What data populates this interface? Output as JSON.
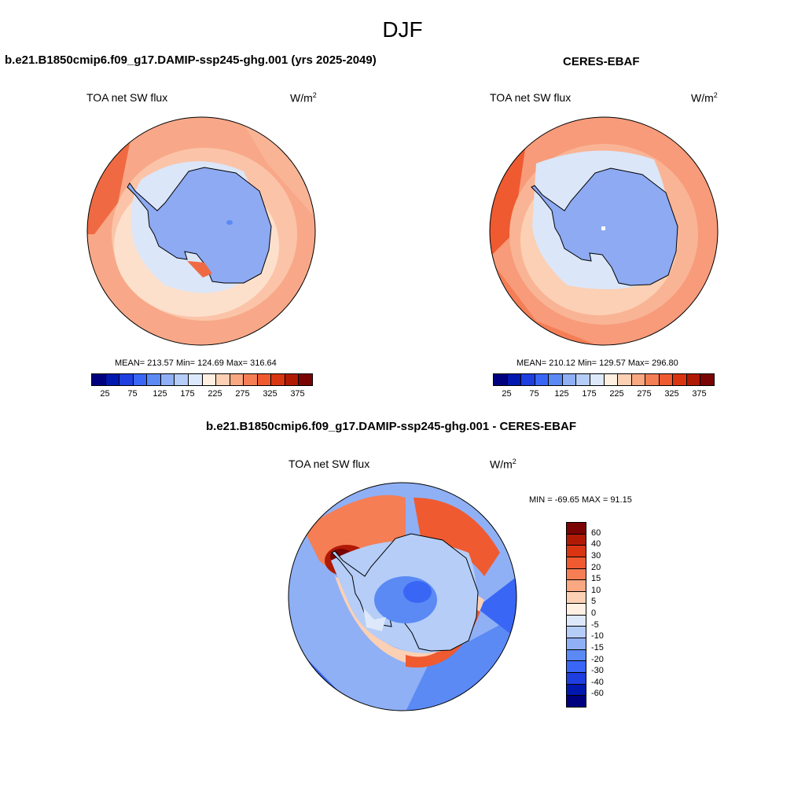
{
  "figure": {
    "title": "DJF"
  },
  "panel_model": {
    "title": "b.e21.B1850cmip6.f09_g17.DAMIP-ssp245-ghg.001 (yrs 2025-2049)",
    "variable": "TOA net SW flux",
    "units": "W/m",
    "units_sup": "2",
    "stats": "MEAN= 213.57  Min= 124.69  Max= 316.64"
  },
  "panel_obs": {
    "title": "CERES-EBAF",
    "variable": "TOA net SW flux",
    "units": "W/m",
    "units_sup": "2",
    "stats": "MEAN= 210.12  Min= 129.57  Max= 296.80"
  },
  "panel_diff": {
    "title": "b.e21.B1850cmip6.f09_g17.DAMIP-ssp245-ghg.001 - CERES-EBAF",
    "variable": "TOA net SW flux",
    "units": "W/m",
    "units_sup": "2",
    "stats": "MIN = -69.65 MAX =  91.15"
  },
  "colorbar_abs": {
    "colors": [
      "#00007f",
      "#0018b0",
      "#1e3ee0",
      "#3a66f5",
      "#5b8af5",
      "#8fb0f5",
      "#b5cdf7",
      "#dde8fa",
      "#fff0e2",
      "#fcd0b4",
      "#f9a882",
      "#f57e55",
      "#ef5a30",
      "#d93512",
      "#b01a05",
      "#7a0403"
    ],
    "ticks": [
      "25",
      "75",
      "125",
      "175",
      "225",
      "275",
      "325",
      "375"
    ]
  },
  "colorbar_diff": {
    "colors": [
      "#7a0403",
      "#b01a05",
      "#d93512",
      "#ef5a30",
      "#f57e55",
      "#f9a882",
      "#fcd0b4",
      "#fff0e2",
      "#dde8fa",
      "#b5cdf7",
      "#8fb0f5",
      "#5b8af5",
      "#3a66f5",
      "#1e3ee0",
      "#0018b0",
      "#00007f"
    ],
    "ticks": [
      "60",
      "40",
      "30",
      "20",
      "15",
      "10",
      "5",
      "0",
      "-5",
      "-10",
      "-15",
      "-20",
      "-30",
      "-40",
      "-60"
    ]
  }
}
